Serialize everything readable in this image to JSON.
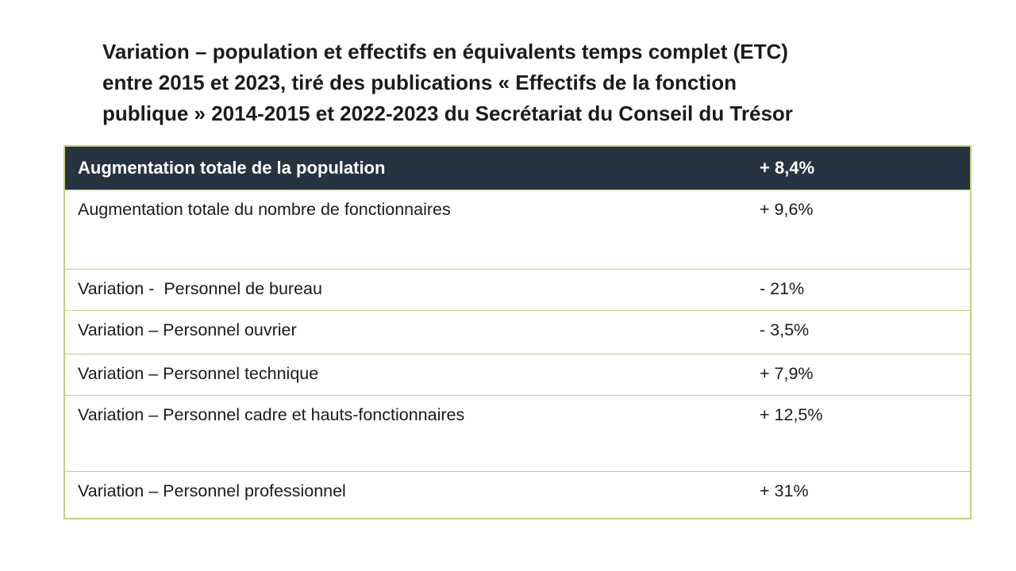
{
  "slide": {
    "title_lines": {
      "line1": "Variation – population et effectifs en équivalents temps complet (ETC)",
      "line2": "entre 2015 et 2023, tiré des publications « Effectifs de la fonction",
      "line3": "publique » 2014-2015 et 2022-2023 du Secrétariat du Conseil du Trésor"
    },
    "table": {
      "header": {
        "label": "Augmentation totale de la population",
        "value": "+ 8,4%"
      },
      "rows": [
        {
          "label": "Augmentation totale du nombre de fonctionnaires",
          "value": "+ 9,6%"
        },
        {
          "label": "Variation -  Personnel de bureau",
          "value": "- 21%"
        },
        {
          "label": "Variation – Personnel ouvrier",
          "value": "- 3,5%"
        },
        {
          "label": "Variation – Personnel technique",
          "value": "+ 7,9%"
        },
        {
          "label": "Variation – Personnel cadre et hauts-fonctionnaires",
          "value": "+ 12,5%"
        },
        {
          "label": "Variation – Personnel professionnel",
          "value": "+ 31%"
        }
      ]
    },
    "colors": {
      "background": "#ffffff",
      "header_bg": "#263340",
      "header_text": "#ffffff",
      "border": "#c6cf7c",
      "body_text": "#1a1a1a",
      "title_text": "#1b1b1b"
    }
  }
}
